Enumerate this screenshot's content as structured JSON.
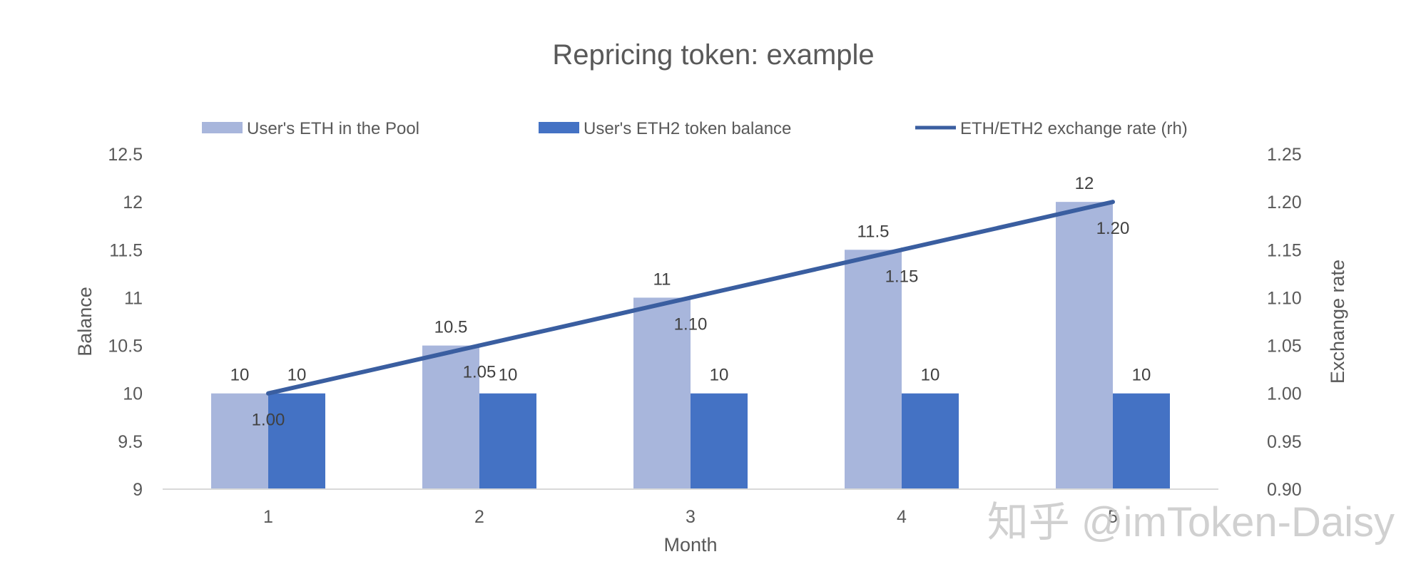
{
  "chart_data": {
    "type": "bar",
    "title": "Repricing token: example",
    "xlabel": "Month",
    "ylabel": "Balance",
    "y2label": "Exchange rate",
    "categories": [
      "1",
      "2",
      "3",
      "4",
      "5"
    ],
    "ylim": [
      9,
      12.5
    ],
    "yticks": [
      "9",
      "9.5",
      "10",
      "10.5",
      "11",
      "11.5",
      "12",
      "12.5"
    ],
    "y2lim": [
      0.9,
      1.25
    ],
    "y2ticks": [
      "0.90",
      "0.95",
      "1.00",
      "1.05",
      "1.10",
      "1.15",
      "1.20",
      "1.25"
    ],
    "grid": false,
    "legend_position": "top",
    "series": [
      {
        "name": "User's ETH in the Pool",
        "type": "bar",
        "axis": "left",
        "color": "#a8b6dc",
        "values": [
          10,
          10.5,
          11,
          11.5,
          12
        ],
        "labels": [
          "10",
          "10.5",
          "11",
          "11.5",
          "12"
        ]
      },
      {
        "name": "User's ETH2 token balance",
        "type": "bar",
        "axis": "left",
        "color": "#4472c4",
        "values": [
          10,
          10,
          10,
          10,
          10
        ],
        "labels": [
          "10",
          "10",
          "10",
          "10",
          "10"
        ]
      },
      {
        "name": "ETH/ETH2 exchange rate (rh)",
        "type": "line",
        "axis": "right",
        "color": "#3a5ea0",
        "values": [
          1.0,
          1.05,
          1.1,
          1.15,
          1.2
        ],
        "labels": [
          "1.00",
          "1.05",
          "1.10",
          "1.15",
          "1.20"
        ]
      }
    ]
  },
  "watermark": "知乎 @imToken-Daisy"
}
